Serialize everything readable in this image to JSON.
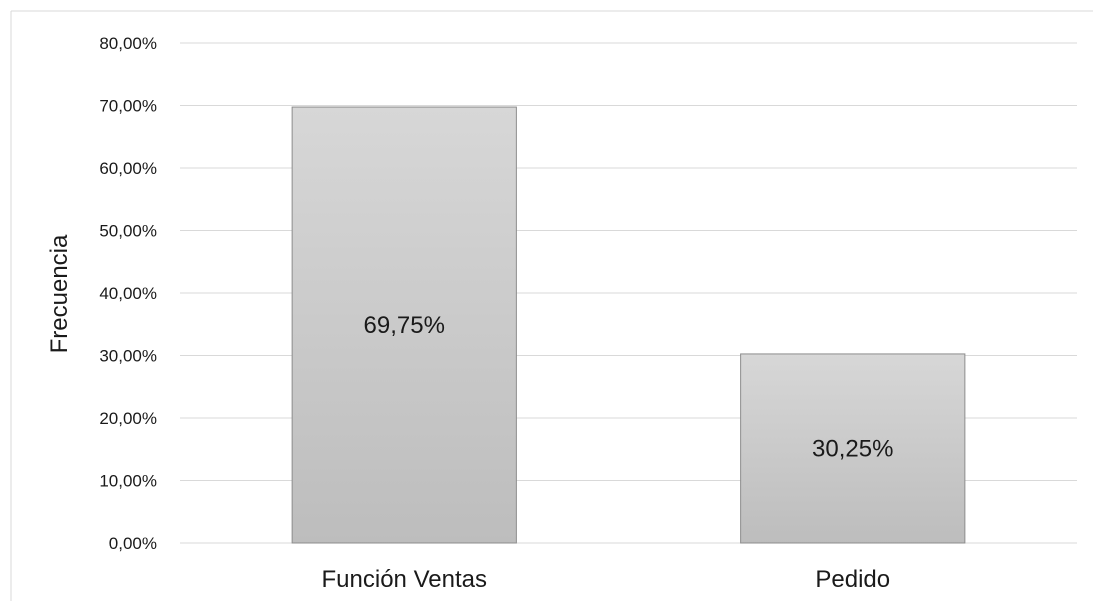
{
  "chart_data": {
    "type": "bar",
    "categories": [
      "Función Ventas",
      "Pedido"
    ],
    "values": [
      69.75,
      30.25
    ],
    "data_labels": [
      "69,75%",
      "30,25%"
    ],
    "title": "",
    "xlabel": "",
    "ylabel": "Frecuencia",
    "ylim": [
      0,
      80
    ],
    "y_ticks": [
      0,
      10,
      20,
      30,
      40,
      50,
      60,
      70,
      80
    ],
    "y_tick_labels": [
      "0,00%",
      "10,00%",
      "20,00%",
      "30,00%",
      "40,00%",
      "50,00%",
      "60,00%",
      "70,00%",
      "80,00%"
    ],
    "grid": true,
    "legend": "none",
    "colors": {
      "bar_top": "#d7d7d7",
      "bar_bottom": "#bdbdbd",
      "bar_stroke": "#8c8c8c",
      "grid": "#d9d9d9",
      "frame": "#d9d9d9"
    }
  }
}
